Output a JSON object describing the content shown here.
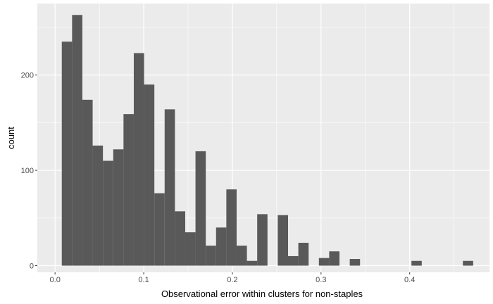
{
  "chart_data": {
    "type": "bar",
    "subtype": "histogram",
    "title": "",
    "xlabel": "Observational error within clusters for non-staples",
    "ylabel": "count",
    "xlim": [
      -0.02,
      0.49
    ],
    "ylim": [
      -7,
      275
    ],
    "x_ticks": [
      0.0,
      0.1,
      0.2,
      0.3,
      0.4
    ],
    "x_tick_labels": [
      "0.0",
      "0.1",
      "0.2",
      "0.3",
      "0.4"
    ],
    "y_ticks": [
      0,
      100,
      200
    ],
    "y_tick_labels": [
      "0",
      "100",
      "200"
    ],
    "grid": true,
    "legend": "none",
    "colors": {
      "panel": "#ebebeb",
      "grid": "#ffffff",
      "bar": "#595959",
      "tick_label": "#4d4d4d"
    },
    "bin_width": 0.0116,
    "bin_starts": [
      0.0076,
      0.0192,
      0.0308,
      0.0424,
      0.054,
      0.0656,
      0.0772,
      0.0888,
      0.1004,
      0.112,
      0.1236,
      0.1352,
      0.1468,
      0.1584,
      0.17,
      0.1816,
      0.1932,
      0.2048,
      0.2164,
      0.228,
      0.2396,
      0.2512,
      0.2628,
      0.2744,
      0.286,
      0.2976,
      0.3092,
      0.3208,
      0.3324,
      0.344,
      0.3556,
      0.3672,
      0.3788,
      0.3904,
      0.402,
      0.4136,
      0.4252,
      0.4368,
      0.4484,
      0.46
    ],
    "values": [
      235,
      263,
      174,
      126,
      110,
      122,
      159,
      223,
      190,
      76,
      164,
      57,
      35,
      120,
      21,
      40,
      80,
      21,
      5,
      54,
      0,
      53,
      10,
      24,
      0,
      8,
      15,
      0,
      7,
      0,
      0,
      0,
      0,
      0,
      5,
      0,
      0,
      0,
      0,
      5
    ]
  }
}
